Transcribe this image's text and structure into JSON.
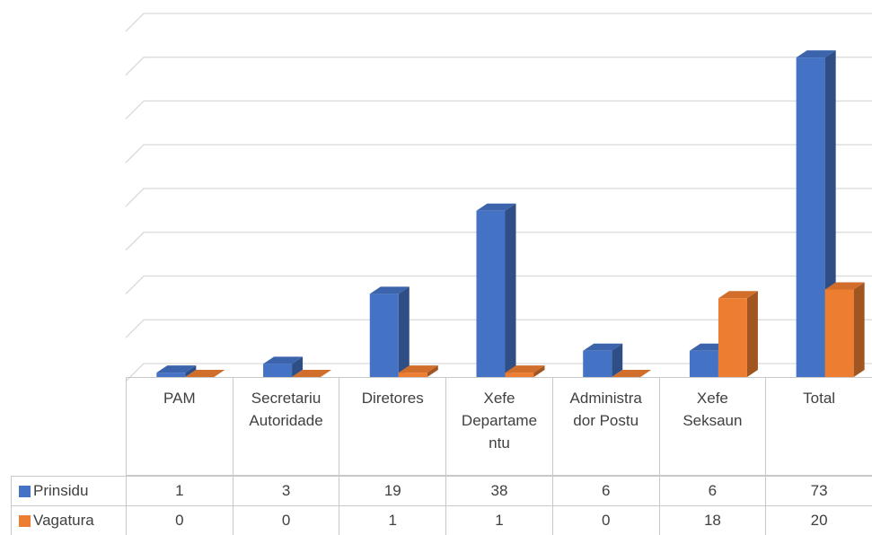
{
  "chart_data": {
    "type": "bar3d",
    "categories": [
      "PAM",
      "Secretariu Autoridade",
      "Diretores",
      "Xefe Departamentu",
      "Administrador Postu",
      "Xefe Seksaun",
      "Total"
    ],
    "series": [
      {
        "name": "Prinsidu",
        "color": "#4472c4",
        "values": [
          1,
          3,
          19,
          38,
          6,
          6,
          73
        ]
      },
      {
        "name": "Vagatura",
        "color": "#ed7d31",
        "values": [
          0,
          0,
          1,
          1,
          0,
          18,
          20
        ]
      }
    ],
    "ylim": [
      0,
      80
    ],
    "yticks": [
      0,
      10,
      20,
      30,
      40,
      50,
      60,
      70,
      80
    ],
    "grid": true,
    "data_table": true
  }
}
